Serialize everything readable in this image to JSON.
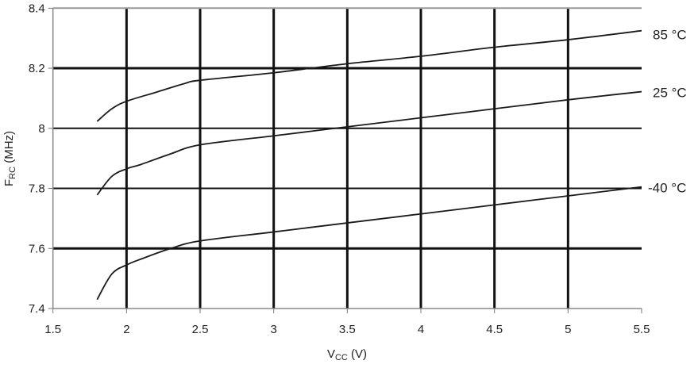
{
  "chart_data": {
    "type": "line",
    "title": "",
    "xlabel": {
      "main": "V",
      "sub": "CC",
      "unit": " (V)"
    },
    "ylabel": {
      "main": "F",
      "sub": "RC",
      "unit": " (MHz)"
    },
    "xlim": [
      1.5,
      5.5
    ],
    "ylim": [
      7.4,
      8.4
    ],
    "xticks": [
      "1.5",
      "2",
      "2.5",
      "3",
      "3.5",
      "4",
      "4.5",
      "5",
      "5.5"
    ],
    "yticks": [
      "7.4",
      "7.6",
      "7.8",
      "8",
      "8.2",
      "8.4"
    ],
    "grid": true,
    "line_color": "#1a1a1a",
    "series": [
      {
        "name": "85 °C",
        "x": [
          1.8,
          1.9,
          2.0,
          2.2,
          2.4,
          2.5,
          3.0,
          3.5,
          4.0,
          4.5,
          5.0,
          5.5
        ],
        "y": [
          8.023,
          8.065,
          8.09,
          8.12,
          8.15,
          8.16,
          8.185,
          8.215,
          8.24,
          8.27,
          8.295,
          8.325
        ]
      },
      {
        "name": "25 °C",
        "x": [
          1.8,
          1.9,
          2.0,
          2.1,
          2.3,
          2.5,
          3.0,
          3.5,
          4.0,
          4.5,
          5.0,
          5.5
        ],
        "y": [
          7.778,
          7.84,
          7.865,
          7.88,
          7.915,
          7.945,
          7.975,
          8.005,
          8.035,
          8.065,
          8.095,
          8.122
        ]
      },
      {
        "name": "-40 °C",
        "x": [
          1.8,
          1.9,
          2.0,
          2.1,
          2.3,
          2.5,
          3.0,
          3.5,
          4.0,
          4.5,
          5.0,
          5.5
        ],
        "y": [
          7.43,
          7.515,
          7.545,
          7.565,
          7.6,
          7.625,
          7.655,
          7.685,
          7.715,
          7.745,
          7.775,
          7.805
        ]
      }
    ]
  }
}
